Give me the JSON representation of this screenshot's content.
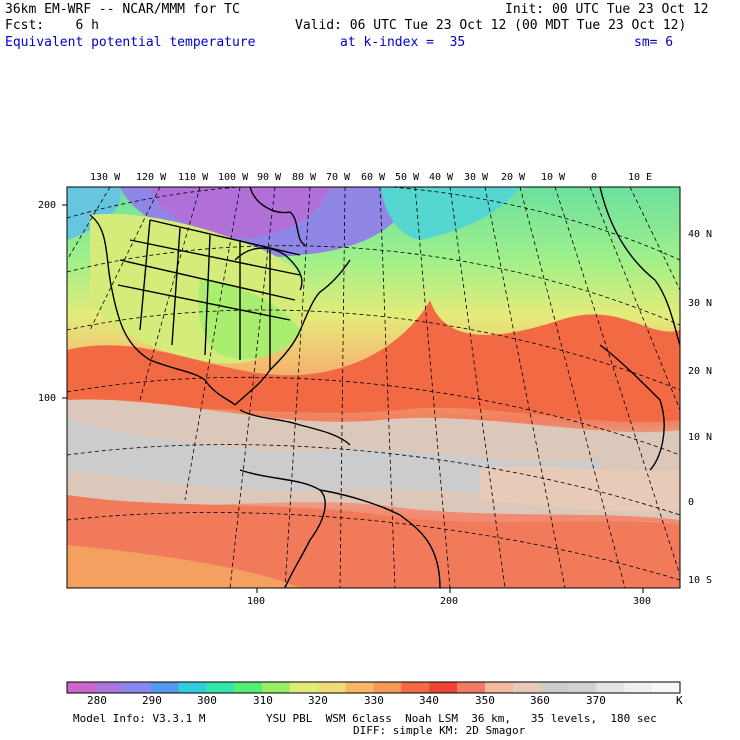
{
  "header": {
    "model": "36km EM-WRF -- NCAR/MMM for TC",
    "init": "Init: 00 UTC Tue 23 Oct 12",
    "fcst": "Fcst:    6 h",
    "valid": "Valid: 06 UTC Tue 23 Oct 12 (00 MDT Tue 23 Oct 12)",
    "field": "Equivalent potential temperature",
    "kindex": "at k-index =  35",
    "smooth": "sm= 6"
  },
  "map": {
    "top_lon_labels": [
      "130 W",
      "120 W",
      "110 W",
      "100 W",
      "90 W",
      "80 W",
      "70 W",
      "60 W",
      "50 W",
      "40 W",
      "30 W",
      "20 W",
      "10 W",
      "0",
      "10 E"
    ],
    "right_lat_labels": [
      "40 N",
      "30 N",
      "20 N",
      "10 N",
      "0",
      "10 S"
    ],
    "left_grid_labels": [
      "200",
      "100"
    ],
    "bottom_grid_labels": [
      "100",
      "200",
      "300"
    ]
  },
  "colorbar": {
    "colors": [
      "#cc66cc",
      "#aa77dd",
      "#8888ee",
      "#5599ee",
      "#33ccdd",
      "#33e6aa",
      "#55ee77",
      "#99ee66",
      "#ddee77",
      "#eedd77",
      "#f7b766",
      "#f49a55",
      "#f26a44",
      "#ee4433",
      "#f07a66",
      "#f2b8a0",
      "#e8cab8",
      "#cccccc",
      "#d2d2d2",
      "#e4e4e4",
      "#f0f0f0",
      "#f8f8f8"
    ],
    "labels": [
      "280",
      "290",
      "300",
      "310",
      "320",
      "330",
      "340",
      "350",
      "360",
      "370"
    ],
    "unit": "K"
  },
  "footer": {
    "model_info": "Model Info: V3.3.1 M",
    "physics": "YSU PBL  WSM 6class  Noah LSM  36 km,   35 levels,  180 sec",
    "diff": "DIFF: simple KM: 2D Smagor"
  }
}
